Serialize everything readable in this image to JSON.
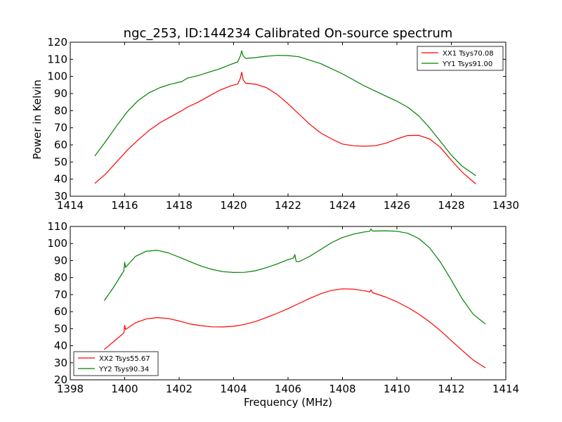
{
  "chart_data": [
    {
      "type": "line",
      "title": "ngc_253, ID:144234 Calibrated On-source spectrum",
      "xlabel": "",
      "ylabel": "Power in Kelvin",
      "xlim": [
        1414,
        1430
      ],
      "ylim": [
        30,
        120
      ],
      "xticks": [
        1414,
        1416,
        1418,
        1420,
        1422,
        1424,
        1426,
        1428,
        1430
      ],
      "yticks": [
        30,
        40,
        50,
        60,
        70,
        80,
        90,
        100,
        110,
        120
      ],
      "legend": "top-right",
      "grid": false,
      "series": [
        {
          "name": "XX1 Tsys70.08",
          "color": "#ff0000",
          "x": [
            1414.9,
            1415.3,
            1415.7,
            1416.1,
            1416.5,
            1416.9,
            1417.3,
            1417.7,
            1418.1,
            1418.3,
            1418.7,
            1419.1,
            1419.5,
            1419.9,
            1420.15,
            1420.25,
            1420.3,
            1420.35,
            1420.45,
            1420.8,
            1421.2,
            1421.6,
            1422.0,
            1422.4,
            1422.8,
            1423.2,
            1423.6,
            1424.0,
            1424.4,
            1424.8,
            1425.2,
            1425.6,
            1426.0,
            1426.4,
            1426.8,
            1427.2,
            1427.6,
            1428.0,
            1428.4,
            1428.9
          ],
          "y": [
            37.5,
            43,
            50,
            57,
            63,
            68.5,
            73,
            76.5,
            80,
            82,
            85,
            88.5,
            92,
            94.5,
            95.5,
            99,
            102.5,
            98,
            96,
            95.5,
            93.5,
            89.5,
            84,
            78,
            72,
            67,
            63.5,
            60.5,
            59.5,
            59.2,
            59.5,
            61,
            63.5,
            65.5,
            65.6,
            63.5,
            58.5,
            51,
            44,
            37.2
          ]
        },
        {
          "name": "YY1 Tsys91.00",
          "color": "#008000",
          "x": [
            1414.9,
            1415.3,
            1415.7,
            1416.1,
            1416.5,
            1416.9,
            1417.3,
            1417.7,
            1418.1,
            1418.3,
            1418.7,
            1419.1,
            1419.5,
            1419.9,
            1420.15,
            1420.25,
            1420.3,
            1420.35,
            1420.45,
            1420.8,
            1421.2,
            1421.6,
            1422.0,
            1422.4,
            1422.8,
            1423.2,
            1423.6,
            1424.0,
            1424.4,
            1424.8,
            1425.2,
            1425.6,
            1426.0,
            1426.4,
            1426.8,
            1427.2,
            1427.6,
            1428.0,
            1428.4,
            1428.9
          ],
          "y": [
            53.5,
            62,
            71,
            79.5,
            86,
            90.5,
            93.5,
            95.5,
            97,
            99,
            100.5,
            102.5,
            104.5,
            107,
            108.5,
            112,
            115,
            112,
            110.5,
            111,
            111.8,
            112.3,
            112.2,
            111.5,
            109.5,
            107.5,
            104.5,
            101.5,
            98,
            94.5,
            91.5,
            88.5,
            85.5,
            82,
            77,
            70,
            62,
            54,
            47.5,
            42
          ]
        }
      ]
    },
    {
      "type": "line",
      "title": "",
      "xlabel": "Frequency (MHz)",
      "ylabel": "",
      "xlim": [
        1398,
        1414
      ],
      "ylim": [
        20,
        110
      ],
      "xticks": [
        1398,
        1400,
        1402,
        1404,
        1406,
        1408,
        1410,
        1412,
        1414
      ],
      "yticks": [
        20,
        30,
        40,
        50,
        60,
        70,
        80,
        90,
        100,
        110
      ],
      "legend": "bottom-left",
      "grid": false,
      "series": [
        {
          "name": "XX2 Tsys55.67",
          "color": "#ff0000",
          "x": [
            1399.25,
            1399.6,
            1399.97,
            1400.0,
            1400.03,
            1400.4,
            1400.8,
            1401.2,
            1401.6,
            1402.0,
            1402.4,
            1402.8,
            1403.2,
            1403.6,
            1404.0,
            1404.4,
            1404.8,
            1405.2,
            1405.6,
            1406.0,
            1406.4,
            1406.8,
            1407.2,
            1407.6,
            1408.0,
            1408.4,
            1408.8,
            1409.0,
            1409.05,
            1409.1,
            1409.6,
            1410.0,
            1410.4,
            1410.8,
            1411.2,
            1411.6,
            1412.0,
            1412.4,
            1412.8,
            1413.25
          ],
          "y": [
            37.8,
            42.5,
            47.5,
            52,
            49.5,
            53.5,
            55.8,
            56.5,
            56,
            54.5,
            52.8,
            51.8,
            51.1,
            51,
            51.4,
            52.5,
            54.2,
            56.5,
            59,
            61.8,
            64.8,
            67.8,
            70.5,
            72.5,
            73.4,
            73.2,
            72.3,
            71.5,
            72.8,
            71.2,
            68.5,
            65.8,
            62.5,
            58.6,
            54,
            48.8,
            43,
            37.2,
            31.6,
            27
          ]
        },
        {
          "name": "YY2 Tsys90.34",
          "color": "#008000",
          "x": [
            1399.25,
            1399.6,
            1399.97,
            1400.0,
            1400.03,
            1400.4,
            1400.8,
            1401.2,
            1401.6,
            1402.0,
            1402.4,
            1402.8,
            1403.2,
            1403.6,
            1404.0,
            1404.4,
            1404.8,
            1405.2,
            1405.6,
            1406.0,
            1406.2,
            1406.25,
            1406.3,
            1406.4,
            1406.8,
            1407.2,
            1407.6,
            1408.0,
            1408.4,
            1408.8,
            1409.0,
            1409.05,
            1409.1,
            1409.6,
            1410.0,
            1410.4,
            1410.8,
            1411.2,
            1411.6,
            1412.0,
            1412.4,
            1412.8,
            1413.25
          ],
          "y": [
            66.5,
            74.5,
            84,
            89,
            86,
            92.5,
            95.5,
            96,
            94.5,
            92,
            89.3,
            86.8,
            84.8,
            83.5,
            83,
            83.1,
            84,
            85.8,
            88,
            90.5,
            91.5,
            93.5,
            89.5,
            89.3,
            92.5,
            96.5,
            100.5,
            103.5,
            105.5,
            106.8,
            107.2,
            108.5,
            107.3,
            107.5,
            107.2,
            106,
            103,
            97.5,
            89,
            78.5,
            67.5,
            58.5,
            52.8
          ]
        }
      ]
    }
  ]
}
